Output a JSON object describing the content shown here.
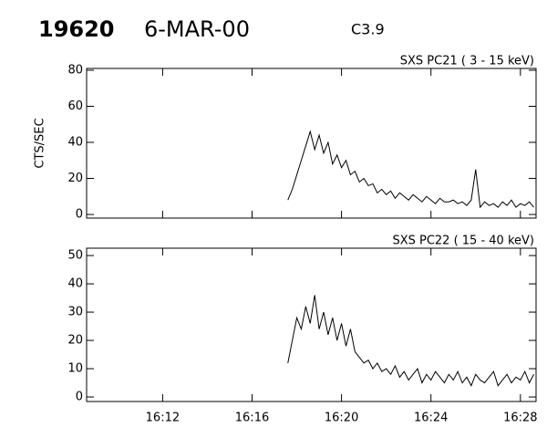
{
  "header": {
    "id": "19620",
    "date": "6-MAR-00",
    "class": "C3.9"
  },
  "chart_data": [
    {
      "type": "line",
      "title": "SXS PC21  (  3 - 15 keV)",
      "y_label": "CTS/SEC",
      "x": [
        977.6,
        977.8,
        978,
        978.2,
        978.4,
        978.6,
        978.8,
        979,
        979.2,
        979.4,
        979.6,
        979.8,
        980,
        980.2,
        980.4,
        980.6,
        980.8,
        981,
        981.2,
        981.4,
        981.6,
        981.8,
        982,
        982.2,
        982.4,
        982.6,
        982.8,
        983,
        983.2,
        983.4,
        983.6,
        983.8,
        984,
        984.2,
        984.4,
        984.6,
        984.8,
        985,
        985.2,
        985.4,
        985.6,
        985.8,
        986,
        986.2,
        986.4,
        986.6,
        986.8,
        987,
        987.2,
        987.4,
        987.6,
        987.8,
        988,
        988.2,
        988.4,
        988.6
      ],
      "series": [
        {
          "color": "#000000",
          "values": [
            8,
            14,
            22,
            30,
            38,
            46,
            36,
            44,
            34,
            40,
            28,
            33,
            26,
            30,
            22,
            24,
            18,
            20,
            16,
            17,
            12,
            14,
            11,
            13,
            9,
            12,
            10,
            8,
            11,
            9,
            7,
            10,
            8,
            6,
            9,
            7,
            7,
            8,
            6,
            7,
            5,
            8,
            25,
            4,
            7,
            5,
            6,
            4,
            7,
            5,
            8,
            4,
            6,
            5,
            7,
            4
          ]
        }
      ],
      "xlim": [
        968.6,
        988.7
      ],
      "xticks": [
        972,
        976,
        980,
        984,
        988
      ],
      "ylim": [
        -2,
        81
      ],
      "yticks": [
        0,
        20,
        40,
        60,
        80
      ]
    },
    {
      "type": "line",
      "title": "SXS PC22  ( 15 - 40 keV)",
      "x": [
        977.6,
        977.8,
        978,
        978.2,
        978.4,
        978.6,
        978.8,
        979,
        979.2,
        979.4,
        979.6,
        979.8,
        980,
        980.2,
        980.4,
        980.6,
        980.8,
        981,
        981.2,
        981.4,
        981.6,
        981.8,
        982,
        982.2,
        982.4,
        982.6,
        982.8,
        983,
        983.2,
        983.4,
        983.6,
        983.8,
        984,
        984.2,
        984.4,
        984.6,
        984.8,
        985,
        985.2,
        985.4,
        985.6,
        985.8,
        986,
        986.2,
        986.4,
        986.6,
        986.8,
        987,
        987.2,
        987.4,
        987.6,
        987.8,
        988,
        988.2,
        988.4,
        988.6
      ],
      "series": [
        {
          "color": "#000000",
          "values": [
            12,
            20,
            28,
            24,
            32,
            26,
            36,
            24,
            30,
            22,
            28,
            20,
            26,
            18,
            24,
            16,
            14,
            12,
            13,
            10,
            12,
            9,
            10,
            8,
            11,
            7,
            9,
            6,
            8,
            10,
            5,
            8,
            6,
            9,
            7,
            5,
            8,
            6,
            9,
            5,
            7,
            4,
            8,
            6,
            5,
            7,
            9,
            4,
            6,
            8,
            5,
            7,
            6,
            9,
            5,
            8
          ]
        }
      ],
      "xlim": [
        968.6,
        988.7
      ],
      "xticks": [
        {
          "value": 972,
          "label": "16:12"
        },
        {
          "value": 976,
          "label": "16:16"
        },
        {
          "value": 980,
          "label": "16:20"
        },
        {
          "value": 984,
          "label": "16:24"
        },
        {
          "value": 988,
          "label": "16:28"
        }
      ],
      "ylim": [
        -1.6,
        52.6
      ],
      "yticks": [
        0,
        10,
        20,
        30,
        40,
        50
      ]
    }
  ]
}
